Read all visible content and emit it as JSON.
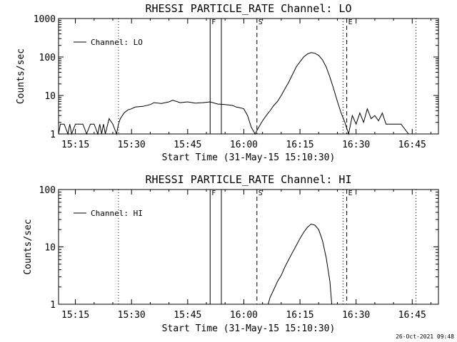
{
  "footer": {
    "timestamp": "26-Oct-2021 09:48"
  },
  "chart_data": [
    {
      "type": "line",
      "title": "RHESSI PARTICLE_RATE Channel: LO",
      "xlabel": "Start Time (31-May-15 15:10:30)",
      "ylabel": "Counts/sec",
      "y_scale": "log",
      "xlim": [
        "15:10:30",
        "16:52:00"
      ],
      "ylim": [
        1,
        1000
      ],
      "x_ticks": [
        "15:15",
        "15:30",
        "15:45",
        "16:00",
        "16:15",
        "16:30",
        "16:45"
      ],
      "y_ticks": [
        "1",
        "10",
        "100",
        "1000"
      ],
      "legend": "top-left",
      "vlines": [
        {
          "label": "F",
          "x": "15:51:00",
          "style": "solid"
        },
        {
          "label": "",
          "x": "15:54:00",
          "style": "solid"
        },
        {
          "label": "S",
          "x": "16:03:30",
          "style": "dashed"
        },
        {
          "label": "E",
          "x": "16:27:30",
          "style": "dashed"
        },
        {
          "label": "",
          "x": "15:26:30",
          "style": "dotted"
        },
        {
          "label": "",
          "x": "16:26:30",
          "style": "dotted"
        },
        {
          "label": "",
          "x": "16:46:00",
          "style": "dotted"
        }
      ],
      "series": [
        {
          "name": "Channel: LO",
          "points": [
            [
              "15:10:30",
              1.0
            ],
            [
              "15:11:00",
              1.8
            ],
            [
              "15:12:00",
              1.8
            ],
            [
              "15:13:00",
              1.0
            ],
            [
              "15:13:30",
              1.8
            ],
            [
              "15:14:00",
              1.0
            ],
            [
              "15:15:00",
              1.8
            ],
            [
              "15:17:00",
              1.8
            ],
            [
              "15:18:00",
              1.0
            ],
            [
              "15:19:00",
              1.8
            ],
            [
              "15:20:00",
              1.8
            ],
            [
              "15:21:00",
              1.0
            ],
            [
              "15:21:30",
              1.8
            ],
            [
              "15:22:00",
              1.0
            ],
            [
              "15:22:30",
              1.8
            ],
            [
              "15:23:00",
              1.0
            ],
            [
              "15:24:00",
              2.5
            ],
            [
              "15:25:00",
              1.8
            ],
            [
              "15:26:00",
              1.0
            ],
            [
              "15:26:30",
              1.8
            ],
            [
              "15:27:00",
              2.5
            ],
            [
              "15:28:00",
              3.5
            ],
            [
              "15:29:00",
              4.2
            ],
            [
              "15:30:00",
              4.5
            ],
            [
              "15:31:00",
              5.0
            ],
            [
              "15:33:00",
              5.2
            ],
            [
              "15:35:00",
              5.8
            ],
            [
              "15:36:00",
              6.5
            ],
            [
              "15:38:00",
              6.2
            ],
            [
              "15:40:00",
              6.8
            ],
            [
              "15:41:00",
              7.5
            ],
            [
              "15:43:00",
              6.5
            ],
            [
              "15:45:00",
              6.8
            ],
            [
              "15:47:00",
              6.3
            ],
            [
              "15:49:00",
              6.5
            ],
            [
              "15:51:00",
              6.8
            ],
            [
              "15:53:00",
              6.0
            ],
            [
              "15:55:00",
              5.8
            ],
            [
              "15:57:00",
              5.5
            ],
            [
              "15:58:00",
              5.0
            ],
            [
              "15:59:00",
              4.8
            ],
            [
              "16:00:00",
              4.5
            ],
            [
              "16:01:00",
              3.0
            ],
            [
              "16:02:00",
              1.5
            ],
            [
              "16:03:00",
              1.0
            ],
            [
              "16:04:00",
              1.5
            ],
            [
              "16:05:00",
              2.2
            ],
            [
              "16:06:00",
              3.0
            ],
            [
              "16:07:00",
              4.0
            ],
            [
              "16:08:00",
              5.5
            ],
            [
              "16:09:00",
              7.0
            ],
            [
              "16:10:00",
              10.0
            ],
            [
              "16:11:00",
              15.0
            ],
            [
              "16:12:00",
              22.0
            ],
            [
              "16:13:00",
              35.0
            ],
            [
              "16:14:00",
              55.0
            ],
            [
              "16:15:00",
              75.0
            ],
            [
              "16:16:00",
              100.0
            ],
            [
              "16:17:00",
              120.0
            ],
            [
              "16:18:00",
              130.0
            ],
            [
              "16:19:00",
              125.0
            ],
            [
              "16:20:00",
              110.0
            ],
            [
              "16:21:00",
              85.0
            ],
            [
              "16:22:00",
              55.0
            ],
            [
              "16:23:00",
              30.0
            ],
            [
              "16:24:00",
              15.0
            ],
            [
              "16:25:00",
              7.0
            ],
            [
              "16:26:00",
              3.5
            ],
            [
              "16:27:00",
              2.0
            ],
            [
              "16:28:00",
              1.0
            ],
            [
              "16:29:00",
              3.0
            ],
            [
              "16:30:00",
              1.8
            ],
            [
              "16:31:00",
              3.5
            ],
            [
              "16:32:00",
              2.0
            ],
            [
              "16:33:00",
              4.5
            ],
            [
              "16:34:00",
              2.5
            ],
            [
              "16:35:00",
              3.0
            ],
            [
              "16:36:00",
              2.2
            ],
            [
              "16:37:00",
              3.5
            ],
            [
              "16:38:00",
              1.8
            ],
            [
              "16:40:00",
              1.8
            ],
            [
              "16:42:00",
              1.8
            ],
            [
              "16:44:00",
              1.0
            ],
            [
              "16:46:00",
              1.0
            ]
          ]
        }
      ]
    },
    {
      "type": "line",
      "title": "RHESSI PARTICLE_RATE Channel: HI",
      "xlabel": "Start Time (31-May-15 15:10:30)",
      "ylabel": "Counts/sec",
      "y_scale": "log",
      "xlim": [
        "15:10:30",
        "16:52:00"
      ],
      "ylim": [
        1,
        100
      ],
      "x_ticks": [
        "15:15",
        "15:30",
        "15:45",
        "16:00",
        "16:15",
        "16:30",
        "16:45"
      ],
      "y_ticks": [
        "1",
        "10",
        "100"
      ],
      "legend": "top-left",
      "vlines": [
        {
          "label": "F",
          "x": "15:51:00",
          "style": "solid"
        },
        {
          "label": "",
          "x": "15:54:00",
          "style": "solid"
        },
        {
          "label": "S",
          "x": "16:03:30",
          "style": "dashed"
        },
        {
          "label": "E",
          "x": "16:27:30",
          "style": "dashed"
        },
        {
          "label": "",
          "x": "15:26:30",
          "style": "dotted"
        },
        {
          "label": "",
          "x": "16:26:30",
          "style": "dotted"
        },
        {
          "label": "",
          "x": "16:46:00",
          "style": "dotted"
        }
      ],
      "series": [
        {
          "name": "Channel: HI",
          "points": [
            [
              "16:06:30",
              1.0
            ],
            [
              "16:07:00",
              1.3
            ],
            [
              "16:08:00",
              1.8
            ],
            [
              "16:09:00",
              2.5
            ],
            [
              "16:10:00",
              3.2
            ],
            [
              "16:11:00",
              4.5
            ],
            [
              "16:12:00",
              6.0
            ],
            [
              "16:13:00",
              8.0
            ],
            [
              "16:14:00",
              10.5
            ],
            [
              "16:15:00",
              14.0
            ],
            [
              "16:16:00",
              18.0
            ],
            [
              "16:17:00",
              22.0
            ],
            [
              "16:18:00",
              25.0
            ],
            [
              "16:19:00",
              24.0
            ],
            [
              "16:20:00",
              20.0
            ],
            [
              "16:21:00",
              13.0
            ],
            [
              "16:22:00",
              6.5
            ],
            [
              "16:23:00",
              2.5
            ],
            [
              "16:23:30",
              1.0
            ]
          ]
        }
      ]
    }
  ]
}
